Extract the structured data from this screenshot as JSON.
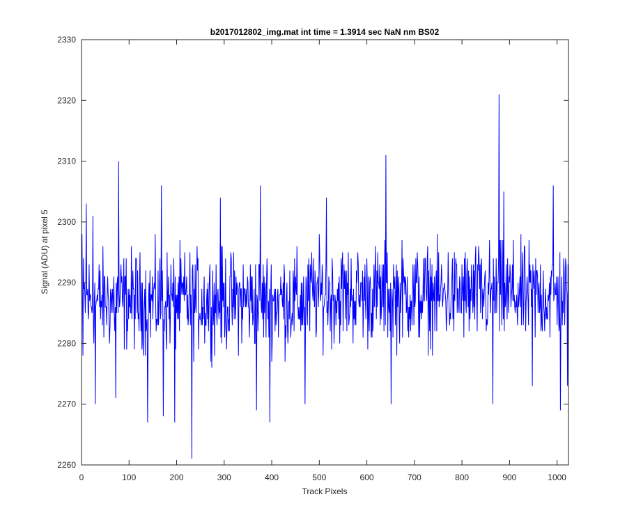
{
  "chart_data": {
    "type": "line",
    "title": "b2017012802_img.mat int time = 1.3914 sec  NaN nm BS02",
    "xlabel": "Track Pixels",
    "ylabel": "Signal (ADU) at pixel 5",
    "xlim": [
      0,
      1024
    ],
    "ylim": [
      2260,
      2330
    ],
    "xticks": [
      0,
      100,
      200,
      300,
      400,
      500,
      600,
      700,
      800,
      900,
      1000
    ],
    "yticks": [
      2260,
      2270,
      2280,
      2290,
      2300,
      2310,
      2320,
      2330
    ],
    "grid": false,
    "series": [
      {
        "color": "#0000ff",
        "x_start": 1,
        "x_step": 1,
        "baseline": 2287,
        "noise_amplitude": 6,
        "noise_seed": 12345,
        "spikes": [
          {
            "x": 1,
            "y": 2298
          },
          {
            "x": 3,
            "y": 2278
          },
          {
            "x": 10,
            "y": 2303
          },
          {
            "x": 24,
            "y": 2301
          },
          {
            "x": 29,
            "y": 2270
          },
          {
            "x": 78,
            "y": 2310
          },
          {
            "x": 72,
            "y": 2271
          },
          {
            "x": 139,
            "y": 2267
          },
          {
            "x": 168,
            "y": 2306
          },
          {
            "x": 172,
            "y": 2268
          },
          {
            "x": 196,
            "y": 2267
          },
          {
            "x": 232,
            "y": 2261
          },
          {
            "x": 292,
            "y": 2304
          },
          {
            "x": 368,
            "y": 2269
          },
          {
            "x": 376,
            "y": 2306
          },
          {
            "x": 396,
            "y": 2267
          },
          {
            "x": 470,
            "y": 2270
          },
          {
            "x": 515,
            "y": 2304
          },
          {
            "x": 640,
            "y": 2311
          },
          {
            "x": 651,
            "y": 2270
          },
          {
            "x": 865,
            "y": 2270
          },
          {
            "x": 878,
            "y": 2321
          },
          {
            "x": 888,
            "y": 2305
          },
          {
            "x": 948,
            "y": 2273
          },
          {
            "x": 992,
            "y": 2306
          },
          {
            "x": 1007,
            "y": 2269
          },
          {
            "x": 1022,
            "y": 2273
          }
        ],
        "n_points": 1024
      }
    ]
  }
}
